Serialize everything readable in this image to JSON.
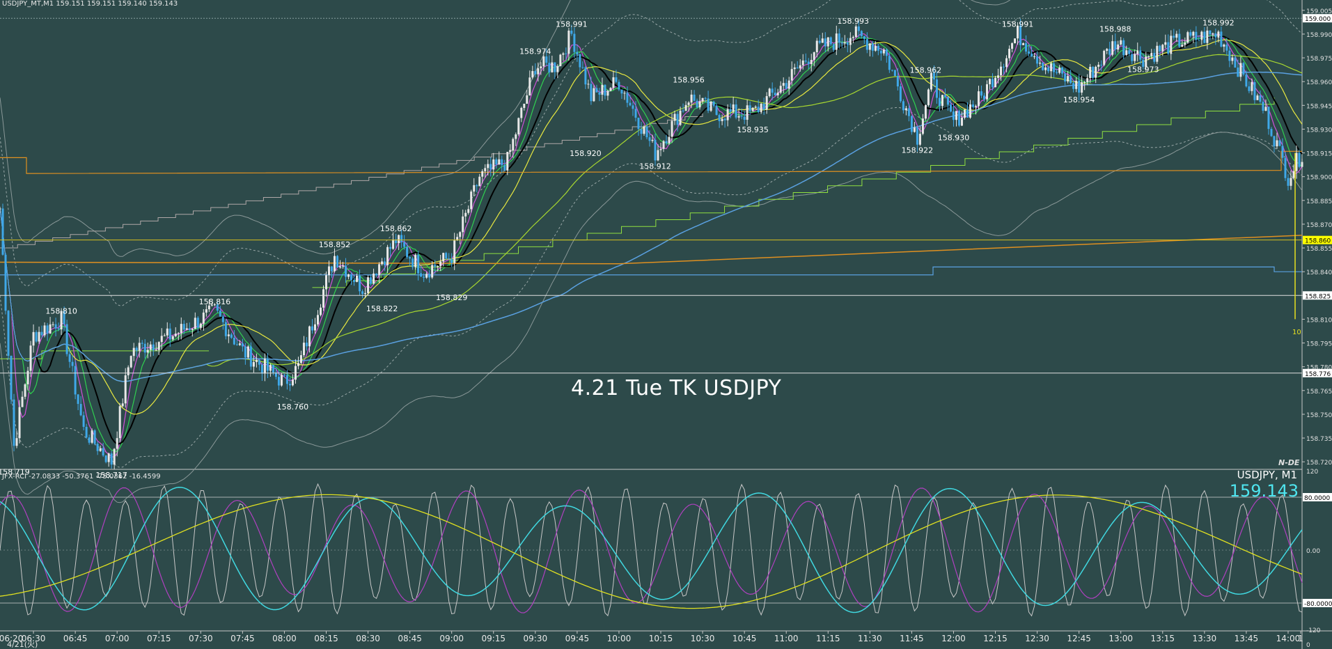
{
  "header": {
    "main_info": "USDJPY_MT,M1  159.151 159.151 159.140 159.143",
    "indicator_info": "JFX-RCI -27.0833 -50.3761 -75.0362 -16.4599"
  },
  "overlay_title": "4.21 Tue TK USDJPY",
  "symbol_label": "USDJPY, M1",
  "current_price": "159.143",
  "logo_text": "N-DE",
  "colors": {
    "background": "#2d4a4a",
    "candle_up": "#e8e8e8",
    "candle_down": "#3fa8e8",
    "ma_fast": "#d050d8",
    "ma_mid": "#30d050",
    "ma_slow": "#000000",
    "ma_yellow": "#e8e840",
    "ma_lime": "#a8d830",
    "ma_blue": "#5aa0e0",
    "ma_orange": "#e09020",
    "step_gray": "#b0a8a8",
    "step_green": "#90e040",
    "rci_gray": "#c8c8c8",
    "rci_purple": "#b040c0",
    "rci_cyan": "#40d8e0",
    "rci_yellow": "#e0e020",
    "price_tag_bg": "#ffff00"
  },
  "price_axis": [
    "159.005",
    "158.990",
    "158.975",
    "158.960",
    "158.945",
    "158.930",
    "158.915",
    "158.900",
    "158.885",
    "158.870",
    "158.855",
    "158.840",
    "158.825",
    "158.810",
    "158.795",
    "158.780",
    "158.765",
    "158.750",
    "158.735",
    "158.720"
  ],
  "price_tags": {
    "top": "159.000",
    "yellow": "158.860",
    "mid": "158.825",
    "low": "158.776"
  },
  "indicator_axis": [
    "120",
    "80.0000",
    "0.00",
    "-80.0000",
    "-120",
    "0"
  ],
  "time_axis": [
    "06:30",
    "06:45",
    "07:00",
    "07:15",
    "07:30",
    "07:45",
    "08:00",
    "08:15",
    "08:30",
    "08:45",
    "09:00",
    "09:15",
    "09:30",
    "09:45",
    "10:00",
    "10:15",
    "10:30",
    "10:45",
    "11:00",
    "11:15",
    "11:30",
    "11:45",
    "12:00",
    "12:15",
    "12:30",
    "12:45",
    "13:00",
    "13:15",
    "13:30",
    "13:45",
    "14:00",
    "1"
  ],
  "time_start_overlap": "06:20",
  "date_label": "4/21(火)",
  "vertical_marker_label": "10",
  "chart_data": {
    "type": "candlestick",
    "symbol": "USDJPY",
    "timeframe": "M1",
    "peak_trough_labels": [
      {
        "time": "06:23",
        "price": 158.719,
        "kind": "low"
      },
      {
        "time": "06:40",
        "price": 158.81,
        "kind": "high"
      },
      {
        "time": "06:58",
        "price": 158.717,
        "kind": "low"
      },
      {
        "time": "07:35",
        "price": 158.816,
        "kind": "high"
      },
      {
        "time": "08:03",
        "price": 158.76,
        "kind": "low"
      },
      {
        "time": "08:18",
        "price": 158.852,
        "kind": "high"
      },
      {
        "time": "08:35",
        "price": 158.822,
        "kind": "low"
      },
      {
        "time": "08:40",
        "price": 158.862,
        "kind": "high"
      },
      {
        "time": "09:00",
        "price": 158.829,
        "kind": "low"
      },
      {
        "time": "09:30",
        "price": 158.974,
        "kind": "high"
      },
      {
        "time": "09:43",
        "price": 158.991,
        "kind": "high"
      },
      {
        "time": "09:48",
        "price": 158.92,
        "kind": "low"
      },
      {
        "time": "10:13",
        "price": 158.912,
        "kind": "low"
      },
      {
        "time": "10:25",
        "price": 158.956,
        "kind": "high"
      },
      {
        "time": "10:48",
        "price": 158.935,
        "kind": "low"
      },
      {
        "time": "11:24",
        "price": 158.993,
        "kind": "high"
      },
      {
        "time": "11:47",
        "price": 158.922,
        "kind": "low"
      },
      {
        "time": "11:50",
        "price": 158.962,
        "kind": "high"
      },
      {
        "time": "12:00",
        "price": 158.93,
        "kind": "low"
      },
      {
        "time": "12:23",
        "price": 158.991,
        "kind": "high"
      },
      {
        "time": "12:45",
        "price": 158.954,
        "kind": "low"
      },
      {
        "time": "12:58",
        "price": 158.988,
        "kind": "high"
      },
      {
        "time": "13:08",
        "price": 158.973,
        "kind": "low"
      },
      {
        "time": "13:35",
        "price": 158.992,
        "kind": "high"
      }
    ]
  }
}
